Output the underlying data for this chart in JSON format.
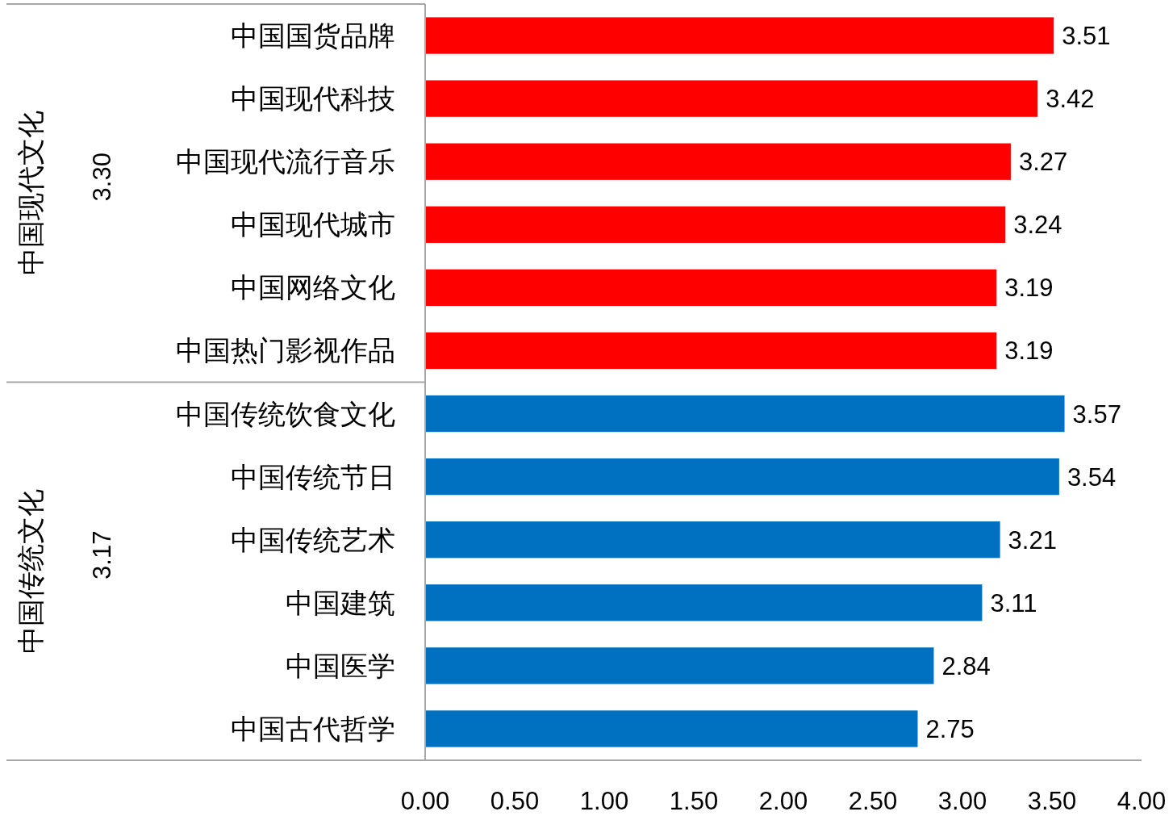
{
  "chart_data": {
    "type": "bar",
    "orientation": "horizontal",
    "categories": [
      "中国国货品牌",
      "中国现代科技",
      "中国现代流行音乐",
      "中国现代城市",
      "中国网络文化",
      "中国热门影视作品",
      "中国传统饮食文化",
      "中国传统节日",
      "中国传统艺术",
      "中国建筑",
      "中国医学",
      "中国古代哲学"
    ],
    "series": [
      {
        "color": "#ff0000",
        "values": [
          3.51,
          3.42,
          3.27,
          3.24,
          3.19,
          3.19,
          null,
          null,
          null,
          null,
          null,
          null
        ]
      },
      {
        "color": "#0070c0",
        "values": [
          null,
          null,
          null,
          null,
          null,
          null,
          3.57,
          3.54,
          3.21,
          3.11,
          2.84,
          2.75
        ]
      }
    ],
    "annotations": [
      "中国现代文化",
      "3.30",
      "中国传统文化",
      "3.17"
    ],
    "xlim": [
      0,
      4
    ],
    "xticks": [
      {
        "value": 0,
        "label": "0.00"
      },
      {
        "value": 0.5,
        "label": "0.50"
      },
      {
        "value": 1,
        "label": "1.00"
      },
      {
        "value": 1.5,
        "label": "1.50"
      },
      {
        "value": 2,
        "label": "2.00"
      },
      {
        "value": 2.5,
        "label": "2.50"
      },
      {
        "value": 3,
        "label": "3.00"
      },
      {
        "value": 3.5,
        "label": "3.50"
      },
      {
        "value": 4,
        "label": "4.00"
      }
    ],
    "data_labels": true,
    "grid": false
  }
}
